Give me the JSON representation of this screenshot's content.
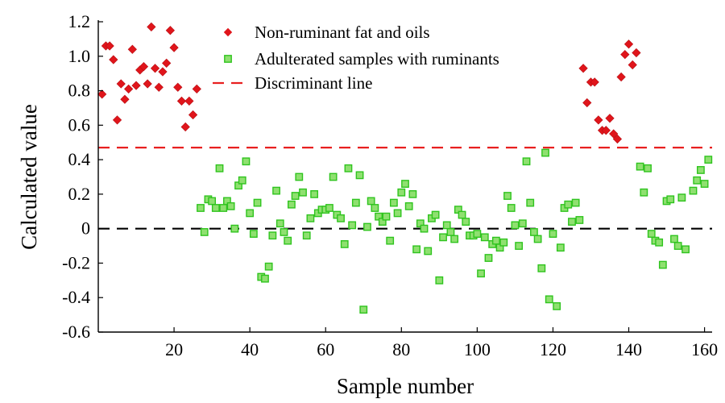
{
  "chart_data": {
    "type": "scatter",
    "xlabel": "Sample number",
    "ylabel": "Calculated value",
    "xlim": [
      0,
      162
    ],
    "ylim": [
      -0.6,
      1.2
    ],
    "x_ticks": [
      20,
      40,
      60,
      80,
      100,
      120,
      140,
      160
    ],
    "x_tick_labels": [
      "20",
      "40",
      "60",
      "80",
      "100",
      "120",
      "140",
      "160"
    ],
    "y_ticks": [
      -0.6,
      -0.4,
      -0.2,
      0,
      0.2,
      0.4,
      0.6,
      0.8,
      1.0,
      1.2
    ],
    "y_tick_labels": [
      "-0.6",
      "-0.4",
      "-0.2",
      "0",
      "0.2",
      "0.4",
      "0.6",
      "0.8",
      "1.0",
      "1.2"
    ],
    "grid": false,
    "legend_position": "top-center",
    "discriminant_line_value": 0.47,
    "zero_line_value": 0,
    "colors": {
      "non_ruminant": "#e0151b",
      "adulterated": "#2fc41e",
      "adulterated_fill": "#8fe070",
      "discriminant": "#e82020",
      "zero": "#000000"
    },
    "series": [
      {
        "name": "Non-ruminant fat and oils",
        "marker": "diamond",
        "points": [
          [
            1,
            0.78
          ],
          [
            2,
            1.06
          ],
          [
            3,
            1.06
          ],
          [
            4,
            0.98
          ],
          [
            5,
            0.63
          ],
          [
            6,
            0.84
          ],
          [
            7,
            0.75
          ],
          [
            8,
            0.81
          ],
          [
            9,
            1.04
          ],
          [
            10,
            0.83
          ],
          [
            11,
            0.92
          ],
          [
            12,
            0.94
          ],
          [
            13,
            0.84
          ],
          [
            14,
            1.17
          ],
          [
            15,
            0.93
          ],
          [
            16,
            0.82
          ],
          [
            17,
            0.91
          ],
          [
            18,
            0.96
          ],
          [
            19,
            1.15
          ],
          [
            20,
            1.05
          ],
          [
            21,
            0.82
          ],
          [
            22,
            0.74
          ],
          [
            23,
            0.59
          ],
          [
            24,
            0.74
          ],
          [
            25,
            0.66
          ],
          [
            26,
            0.81
          ],
          [
            128,
            0.93
          ],
          [
            129,
            0.73
          ],
          [
            130,
            0.85
          ],
          [
            131,
            0.85
          ],
          [
            132,
            0.63
          ],
          [
            133,
            0.57
          ],
          [
            134,
            0.57
          ],
          [
            135,
            0.64
          ],
          [
            136,
            0.55
          ],
          [
            137,
            0.52
          ],
          [
            138,
            0.88
          ],
          [
            139,
            1.01
          ],
          [
            140,
            1.07
          ],
          [
            141,
            0.95
          ],
          [
            142,
            1.02
          ]
        ]
      },
      {
        "name": "Adulterated samples with ruminants",
        "marker": "square",
        "points": [
          [
            27,
            0.12
          ],
          [
            28,
            -0.02
          ],
          [
            29,
            0.17
          ],
          [
            30,
            0.16
          ],
          [
            31,
            0.12
          ],
          [
            32,
            0.35
          ],
          [
            33,
            0.12
          ],
          [
            34,
            0.16
          ],
          [
            35,
            0.13
          ],
          [
            36,
            0.0
          ],
          [
            37,
            0.25
          ],
          [
            38,
            0.28
          ],
          [
            39,
            0.39
          ],
          [
            40,
            0.09
          ],
          [
            41,
            -0.03
          ],
          [
            42,
            0.15
          ],
          [
            43,
            -0.28
          ],
          [
            44,
            -0.29
          ],
          [
            45,
            -0.22
          ],
          [
            46,
            -0.04
          ],
          [
            47,
            0.22
          ],
          [
            48,
            0.03
          ],
          [
            49,
            -0.02
          ],
          [
            50,
            -0.07
          ],
          [
            51,
            0.14
          ],
          [
            52,
            0.19
          ],
          [
            53,
            0.3
          ],
          [
            54,
            0.21
          ],
          [
            55,
            -0.04
          ],
          [
            56,
            0.06
          ],
          [
            57,
            0.2
          ],
          [
            58,
            0.09
          ],
          [
            59,
            0.11
          ],
          [
            60,
            0.11
          ],
          [
            61,
            0.12
          ],
          [
            62,
            0.3
          ],
          [
            63,
            0.08
          ],
          [
            64,
            0.06
          ],
          [
            65,
            -0.09
          ],
          [
            66,
            0.35
          ],
          [
            67,
            0.02
          ],
          [
            68,
            0.15
          ],
          [
            69,
            0.31
          ],
          [
            70,
            -0.47
          ],
          [
            71,
            0.01
          ],
          [
            72,
            0.16
          ],
          [
            73,
            0.12
          ],
          [
            74,
            0.07
          ],
          [
            75,
            0.04
          ],
          [
            76,
            0.07
          ],
          [
            77,
            -0.07
          ],
          [
            78,
            0.15
          ],
          [
            79,
            0.09
          ],
          [
            80,
            0.21
          ],
          [
            81,
            0.26
          ],
          [
            82,
            0.13
          ],
          [
            83,
            0.2
          ],
          [
            84,
            -0.12
          ],
          [
            85,
            0.03
          ],
          [
            86,
            0.0
          ],
          [
            87,
            -0.13
          ],
          [
            88,
            0.06
          ],
          [
            89,
            0.08
          ],
          [
            90,
            -0.3
          ],
          [
            91,
            -0.05
          ],
          [
            92,
            0.02
          ],
          [
            93,
            -0.02
          ],
          [
            94,
            -0.06
          ],
          [
            95,
            0.11
          ],
          [
            96,
            0.08
          ],
          [
            97,
            0.04
          ],
          [
            98,
            -0.04
          ],
          [
            99,
            -0.04
          ],
          [
            100,
            -0.03
          ],
          [
            101,
            -0.26
          ],
          [
            102,
            -0.05
          ],
          [
            103,
            -0.17
          ],
          [
            104,
            -0.09
          ],
          [
            105,
            -0.07
          ],
          [
            106,
            -0.11
          ],
          [
            107,
            -0.08
          ],
          [
            108,
            0.19
          ],
          [
            109,
            0.12
          ],
          [
            110,
            0.02
          ],
          [
            111,
            -0.1
          ],
          [
            112,
            0.03
          ],
          [
            113,
            0.39
          ],
          [
            114,
            0.15
          ],
          [
            115,
            -0.02
          ],
          [
            116,
            -0.06
          ],
          [
            117,
            -0.23
          ],
          [
            118,
            0.44
          ],
          [
            119,
            -0.41
          ],
          [
            120,
            -0.03
          ],
          [
            121,
            -0.45
          ],
          [
            122,
            -0.11
          ],
          [
            123,
            0.12
          ],
          [
            124,
            0.14
          ],
          [
            125,
            0.04
          ],
          [
            126,
            0.15
          ],
          [
            127,
            0.05
          ],
          [
            143,
            0.36
          ],
          [
            144,
            0.21
          ],
          [
            145,
            0.35
          ],
          [
            146,
            -0.03
          ],
          [
            147,
            -0.07
          ],
          [
            148,
            -0.08
          ],
          [
            149,
            -0.21
          ],
          [
            150,
            0.16
          ],
          [
            151,
            0.17
          ],
          [
            152,
            -0.06
          ],
          [
            153,
            -0.1
          ],
          [
            154,
            0.18
          ],
          [
            155,
            -0.12
          ],
          [
            157,
            0.22
          ],
          [
            158,
            0.28
          ],
          [
            159,
            0.34
          ],
          [
            160,
            0.26
          ],
          [
            161,
            0.4
          ]
        ]
      }
    ],
    "legend_entries": [
      "Non-ruminant fat and oils",
      "Adulterated samples with ruminants",
      "Discriminant line"
    ]
  }
}
